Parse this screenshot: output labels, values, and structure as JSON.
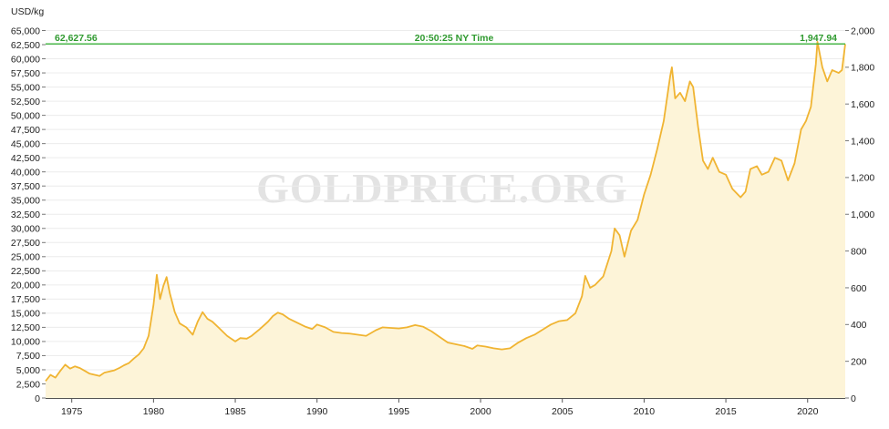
{
  "chart_data": {
    "type": "area",
    "title": "",
    "xlabel": "",
    "ylabel": "USD/kg",
    "watermark": "GOLDPRICE.ORG",
    "xlim": [
      1973.4,
      2022.3
    ],
    "ylim_left": [
      0,
      65000
    ],
    "ylim_right": [
      0,
      2000
    ],
    "x_ticks": [
      1975,
      1980,
      1985,
      1990,
      1995,
      2000,
      2005,
      2010,
      2015,
      2020
    ],
    "x_tick_labels": [
      "1975",
      "1980",
      "1985",
      "1990",
      "1995",
      "2000",
      "2005",
      "2010",
      "2015",
      "2020"
    ],
    "y_left_ticks": [
      0,
      2500,
      5000,
      7500,
      10000,
      12500,
      15000,
      17500,
      20000,
      22500,
      25000,
      27500,
      30000,
      32500,
      35000,
      37500,
      40000,
      42500,
      45000,
      47500,
      50000,
      52500,
      55000,
      57500,
      60000,
      62500,
      65000
    ],
    "y_left_tick_labels": [
      "0",
      "2,500",
      "5,000",
      "7,500",
      "10,000",
      "12,500",
      "15,000",
      "17,500",
      "20,000",
      "22,500",
      "25,000",
      "27,500",
      "30,000",
      "32,500",
      "35,000",
      "37,500",
      "40,000",
      "42,500",
      "45,000",
      "47,500",
      "50,000",
      "52,500",
      "55,000",
      "57,500",
      "60,000",
      "62,500",
      "65,000"
    ],
    "y_right_ticks": [
      0,
      200,
      400,
      600,
      800,
      1000,
      1200,
      1400,
      1600,
      1800,
      2000
    ],
    "y_right_tick_labels": [
      "0",
      "200",
      "400",
      "600",
      "800",
      "1,000",
      "1,200",
      "1,400",
      "1,600",
      "1,800",
      "2,000"
    ],
    "grid": true,
    "current": {
      "value_kg": 62627.56,
      "value_oz": 1947.94,
      "label_kg": "62,627.56",
      "label_oz": "1,947.94",
      "time": "20:50:25 NY Time"
    },
    "colors": {
      "line": "#f0b432",
      "fill": "#fdf4d8",
      "current_line": "#3cb43c",
      "current_text": "#2f9a2f",
      "grid": "#ececec"
    },
    "series": [
      {
        "x": [
          1973.4,
          1973.7,
          1974.0,
          1974.3,
          1974.6,
          1974.9,
          1975.2,
          1975.5,
          1975.8,
          1976.1,
          1976.4,
          1976.7,
          1977.0,
          1977.3,
          1977.6,
          1977.9,
          1978.2,
          1978.5,
          1978.8,
          1979.1,
          1979.4,
          1979.7,
          1980.0,
          1980.2,
          1980.4,
          1980.6,
          1980.8,
          1981.0,
          1981.3,
          1981.6,
          1982.0,
          1982.4,
          1982.7,
          1983.0,
          1983.3,
          1983.6,
          1984.0,
          1984.5,
          1985.0,
          1985.3,
          1985.7,
          1986.0,
          1986.5,
          1987.0,
          1987.3,
          1987.6,
          1987.9,
          1988.3,
          1988.8,
          1989.3,
          1989.7,
          1990.0,
          1990.5,
          1991.0,
          1991.5,
          1992.0,
          1992.5,
          1993.0,
          1993.6,
          1994.0,
          1994.5,
          1995.0,
          1995.5,
          1996.0,
          1996.5,
          1997.0,
          1997.5,
          1998.0,
          1998.5,
          1999.0,
          1999.5,
          1999.8,
          2000.3,
          2000.8,
          2001.3,
          2001.8,
          2002.3,
          2002.8,
          2003.3,
          2003.8,
          2004.3,
          2004.8,
          2005.3,
          2005.8,
          2006.2,
          2006.4,
          2006.7,
          2007.0,
          2007.5,
          2008.0,
          2008.2,
          2008.5,
          2008.8,
          2009.2,
          2009.6,
          2010.0,
          2010.4,
          2010.8,
          2011.2,
          2011.6,
          2011.7,
          2011.9,
          2012.2,
          2012.5,
          2012.8,
          2013.0,
          2013.3,
          2013.6,
          2013.9,
          2014.2,
          2014.6,
          2015.0,
          2015.4,
          2015.9,
          2016.2,
          2016.5,
          2016.9,
          2017.2,
          2017.6,
          2018.0,
          2018.4,
          2018.8,
          2019.2,
          2019.6,
          2019.9,
          2020.2,
          2020.5,
          2020.6,
          2020.9,
          2021.2,
          2021.5,
          2021.9,
          2022.1,
          2022.3
        ],
        "y": [
          3000,
          4100,
          3600,
          4800,
          5900,
          5200,
          5600,
          5300,
          4800,
          4300,
          4100,
          3900,
          4500,
          4700,
          4900,
          5300,
          5800,
          6200,
          7000,
          7700,
          8800,
          11000,
          16500,
          21800,
          17500,
          19800,
          21400,
          18500,
          15200,
          13200,
          12500,
          11200,
          13500,
          15200,
          14000,
          13500,
          12400,
          11000,
          10000,
          10600,
          10500,
          11000,
          12200,
          13500,
          14500,
          15100,
          14800,
          14000,
          13300,
          12600,
          12200,
          13000,
          12500,
          11700,
          11500,
          11400,
          11200,
          11000,
          12000,
          12500,
          12400,
          12300,
          12500,
          12900,
          12600,
          11800,
          10800,
          9800,
          9500,
          9200,
          8700,
          9300,
          9100,
          8800,
          8600,
          8800,
          9800,
          10600,
          11200,
          12100,
          13000,
          13600,
          13800,
          15000,
          18000,
          21600,
          19500,
          20000,
          21500,
          26000,
          30000,
          28800,
          25000,
          29600,
          31500,
          36000,
          39500,
          44000,
          49000,
          57000,
          58500,
          53000,
          54000,
          52500,
          56000,
          55000,
          48000,
          42000,
          40500,
          42500,
          40000,
          39500,
          37000,
          35500,
          36500,
          40500,
          41000,
          39500,
          40000,
          42500,
          42000,
          38500,
          41500,
          47500,
          49000,
          51500,
          59000,
          63000,
          58500,
          56000,
          58000,
          57500,
          58000,
          62600
        ]
      }
    ]
  }
}
